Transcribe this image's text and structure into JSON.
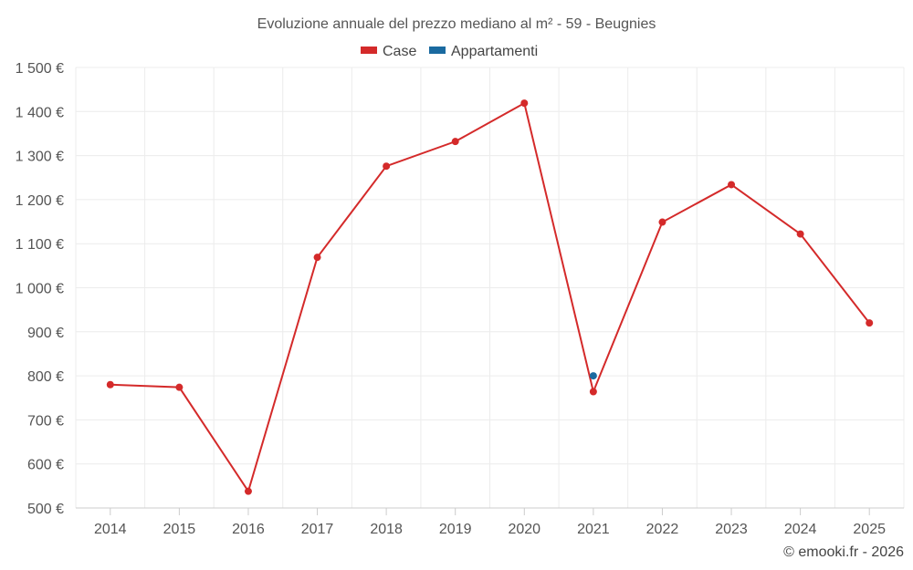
{
  "chart_data": {
    "type": "line",
    "title": "Evoluzione annuale del prezzo mediano al m² - 59 - Beugnies",
    "categories": [
      "2014",
      "2015",
      "2016",
      "2017",
      "2018",
      "2019",
      "2020",
      "2021",
      "2022",
      "2023",
      "2024",
      "2025"
    ],
    "ylim": [
      500,
      1500
    ],
    "yticks": [
      500,
      600,
      700,
      800,
      900,
      1000,
      1100,
      1200,
      1300,
      1400,
      1500
    ],
    "ytick_labels": [
      "500 €",
      "600 €",
      "700 €",
      "800 €",
      "900 €",
      "1 000 €",
      "1 100 €",
      "1 200 €",
      "1 300 €",
      "1 400 €",
      "1 500 €"
    ],
    "grid": true,
    "legend_position": "top-center",
    "series": [
      {
        "name": "Case",
        "color": "#d42a2a",
        "values": [
          780,
          774,
          538,
          1069,
          1276,
          1332,
          1419,
          764,
          1149,
          1234,
          1122,
          920
        ]
      },
      {
        "name": "Appartamenti",
        "color": "#1a6aa0",
        "values": [
          null,
          null,
          null,
          null,
          null,
          null,
          null,
          800,
          null,
          null,
          null,
          null
        ]
      }
    ],
    "credit": "© emooki.fr - 2026"
  }
}
